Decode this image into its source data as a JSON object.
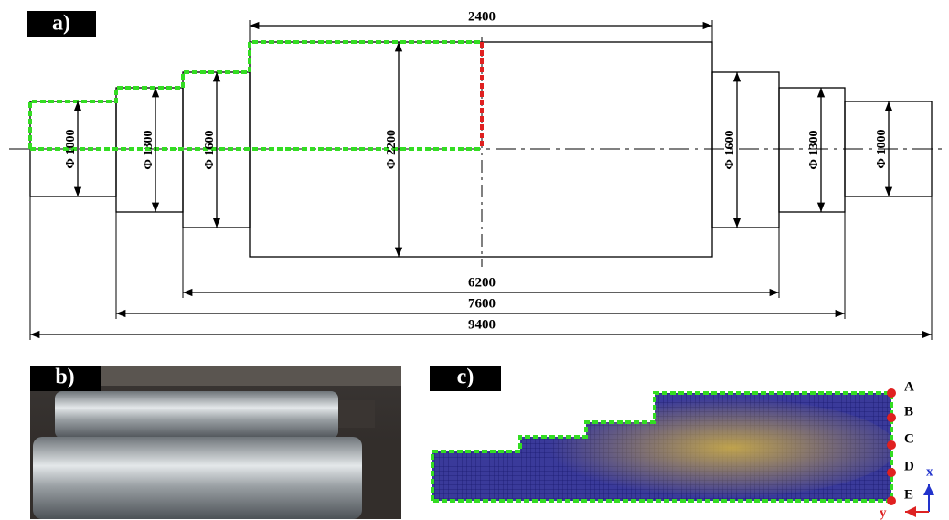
{
  "panels": {
    "a": "a)",
    "b": "b)",
    "c": "c)"
  },
  "dimensions": {
    "body_length": "2400",
    "length_6200": "6200",
    "length_7600": "7600",
    "total_length": "9400"
  },
  "diameters": [
    "Φ 1000",
    "Φ 1300",
    "Φ 1600",
    "Φ 2200",
    "Φ 1600",
    "Φ 1300",
    "Φ 1000"
  ],
  "points": [
    "A",
    "B",
    "C",
    "D",
    "E"
  ],
  "axes": {
    "x": "x",
    "y": "y"
  }
}
